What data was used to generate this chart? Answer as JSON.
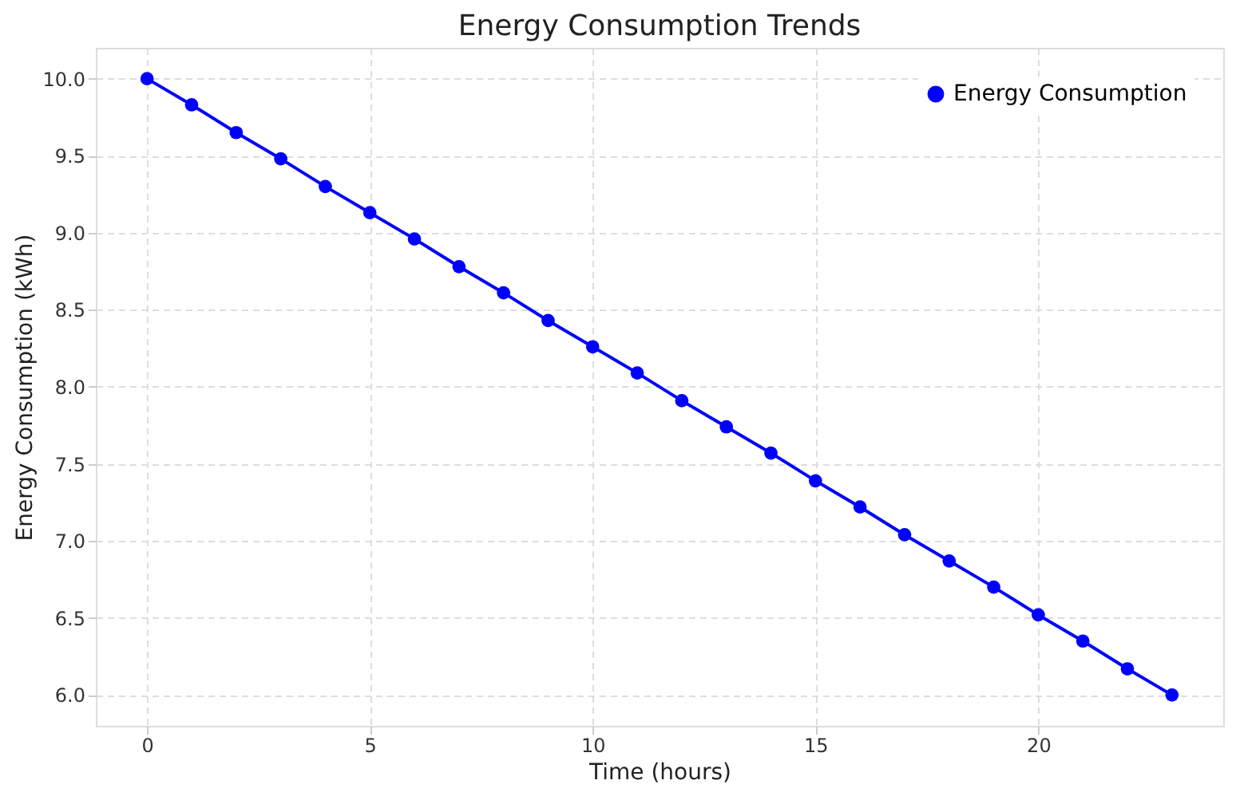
{
  "chart_data": {
    "type": "line",
    "title": "Energy Consumption Trends",
    "xlabel": "Time (hours)",
    "ylabel": "Energy Consumption (kWh)",
    "x": [
      0,
      1,
      2,
      3,
      4,
      5,
      6,
      7,
      8,
      9,
      10,
      11,
      12,
      13,
      14,
      15,
      16,
      17,
      18,
      19,
      20,
      21,
      22,
      23
    ],
    "series": [
      {
        "name": "Energy Consumption",
        "color": "#0000ff",
        "values": [
          10.0,
          9.83,
          9.65,
          9.48,
          9.3,
          9.13,
          8.96,
          8.78,
          8.61,
          8.43,
          8.26,
          8.09,
          7.91,
          7.74,
          7.57,
          7.39,
          7.22,
          7.04,
          6.87,
          6.7,
          6.52,
          6.35,
          6.17,
          6.0
        ]
      }
    ],
    "xlim": [
      -1.15,
      24.15
    ],
    "ylim": [
      5.8,
      10.2
    ],
    "xticks": [
      0,
      5,
      10,
      15,
      20
    ],
    "yticks": [
      {
        "value": 6,
        "label": "6.0"
      },
      6.5,
      {
        "value": 7,
        "label": "7.0"
      },
      7.5,
      {
        "value": 8,
        "label": "8.0"
      },
      8.5,
      {
        "value": 9,
        "label": "9.0"
      },
      9.5,
      {
        "value": 10,
        "label": "10.0"
      }
    ],
    "grid": true,
    "legend": "top right",
    "marker": "circle",
    "line_style": "solid"
  }
}
